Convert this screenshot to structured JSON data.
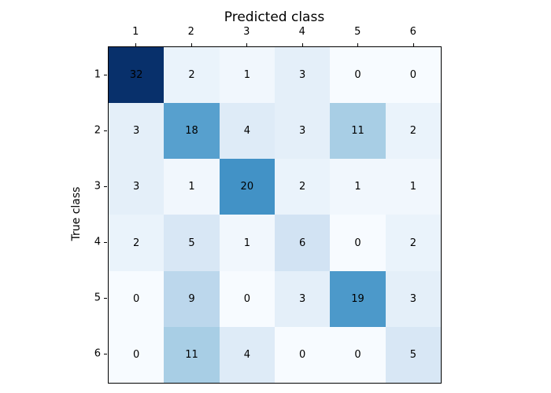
{
  "chart_data": {
    "type": "heatmap",
    "title": "Predicted class",
    "xlabel": "Predicted class",
    "ylabel": "True class",
    "x_tick_labels": [
      "1",
      "2",
      "3",
      "4",
      "5",
      "6"
    ],
    "y_tick_labels": [
      "1",
      "2",
      "3",
      "4",
      "5",
      "6"
    ],
    "matrix": [
      [
        32,
        2,
        1,
        3,
        0,
        0
      ],
      [
        3,
        18,
        4,
        3,
        11,
        2
      ],
      [
        3,
        1,
        20,
        2,
        1,
        1
      ],
      [
        2,
        5,
        1,
        6,
        0,
        2
      ],
      [
        0,
        9,
        0,
        3,
        19,
        3
      ],
      [
        0,
        11,
        4,
        0,
        0,
        5
      ]
    ],
    "value_range": [
      0,
      32
    ],
    "grid": false,
    "legend": "none",
    "text_color": "#000000",
    "spine_color": "#000000",
    "background_color": "#ffffff",
    "color_scale": {
      "0": "#f7fbff",
      "1": "#f1f7fd",
      "2": "#eaf3fb",
      "3": "#e4eff9",
      "4": "#deebf7",
      "5": "#d8e7f5",
      "6": "#d2e3f3",
      "9": "#bcd7ec",
      "11": "#a8cee5",
      "18": "#57a0ce",
      "19": "#4c99ca",
      "20": "#4292c6",
      "32": "#08306b"
    }
  }
}
